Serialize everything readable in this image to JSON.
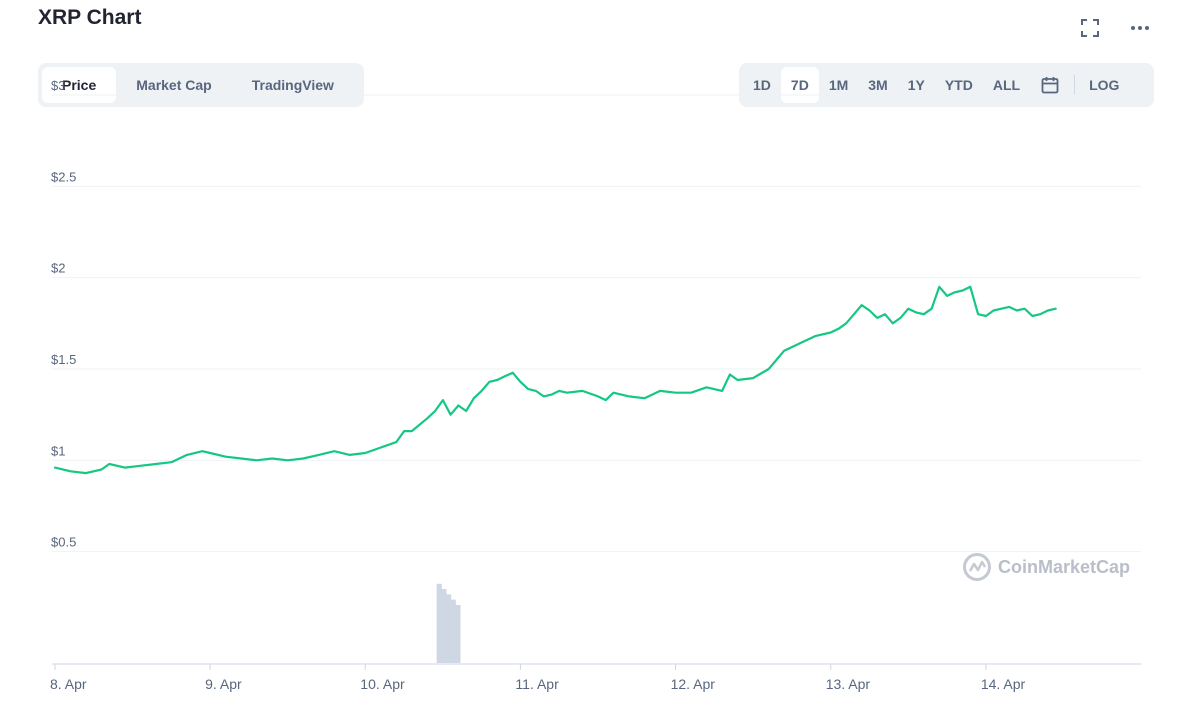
{
  "title": "XRP Chart",
  "icons": {
    "fullscreen": "fullscreen-icon",
    "more": "more-icon",
    "calendar": "calendar-icon",
    "brand": "coinmarketcap-logo-icon"
  },
  "tabs": [
    {
      "label": "Price",
      "active": true
    },
    {
      "label": "Market Cap",
      "active": false
    },
    {
      "label": "TradingView",
      "active": false
    }
  ],
  "ranges": [
    {
      "label": "1D",
      "active": false
    },
    {
      "label": "7D",
      "active": true
    },
    {
      "label": "1M",
      "active": false
    },
    {
      "label": "3M",
      "active": false
    },
    {
      "label": "1Y",
      "active": false
    },
    {
      "label": "YTD",
      "active": false
    },
    {
      "label": "ALL",
      "active": false
    }
  ],
  "log_label": "LOG",
  "watermark": "CoinMarketCap",
  "colors": {
    "line": "#16c784",
    "grid": "#eff2f5",
    "volume": "#cfd6e4",
    "axis_text": "#58667e"
  },
  "chart_data": {
    "type": "line",
    "ylim": [
      0,
      3
    ],
    "yticks": [
      0.5,
      1,
      1.5,
      2,
      2.5,
      3
    ],
    "ytick_labels": [
      "$0.5",
      "$1",
      "$1.5",
      "$2",
      "$2.5",
      "$3"
    ],
    "xlim": [
      8,
      15
    ],
    "xticks": [
      8,
      9,
      10,
      11,
      12,
      13,
      14
    ],
    "xtick_labels": [
      "8. Apr",
      "9. Apr",
      "10. Apr",
      "11. Apr",
      "12. Apr",
      "13. Apr",
      "14. Apr"
    ],
    "grid": true,
    "series": [
      {
        "values_x": [
          8.0,
          8.1,
          8.2,
          8.3,
          8.35,
          8.45,
          8.55,
          8.65,
          8.75,
          8.85,
          8.95,
          9.0,
          9.1,
          9.2,
          9.3,
          9.4,
          9.5,
          9.6,
          9.7,
          9.8,
          9.9,
          10.0,
          10.1,
          10.2,
          10.25,
          10.3,
          10.4,
          10.45,
          10.5,
          10.55,
          10.6,
          10.65,
          10.7,
          10.75,
          10.8,
          10.85,
          10.9,
          10.95,
          11.0,
          11.05,
          11.1,
          11.15,
          11.2,
          11.25,
          11.3,
          11.4,
          11.5,
          11.55,
          11.6,
          11.7,
          11.8,
          11.9,
          12.0,
          12.1,
          12.2,
          12.3,
          12.35,
          12.4,
          12.5,
          12.6,
          12.7,
          12.8,
          12.9,
          13.0,
          13.05,
          13.1,
          13.15,
          13.2,
          13.25,
          13.3,
          13.35,
          13.4,
          13.45,
          13.5,
          13.55,
          13.6,
          13.65,
          13.7,
          13.75,
          13.8,
          13.85,
          13.9,
          13.95,
          14.0,
          14.05,
          14.1,
          14.15,
          14.2,
          14.25,
          14.3,
          14.35,
          14.4,
          14.45
        ],
        "values": [
          0.96,
          0.94,
          0.93,
          0.95,
          0.98,
          0.96,
          0.97,
          0.98,
          0.99,
          1.03,
          1.05,
          1.04,
          1.02,
          1.01,
          1.0,
          1.01,
          1.0,
          1.01,
          1.03,
          1.05,
          1.03,
          1.04,
          1.07,
          1.1,
          1.16,
          1.16,
          1.23,
          1.27,
          1.33,
          1.25,
          1.3,
          1.27,
          1.34,
          1.38,
          1.43,
          1.44,
          1.46,
          1.48,
          1.43,
          1.39,
          1.38,
          1.35,
          1.36,
          1.38,
          1.37,
          1.38,
          1.35,
          1.33,
          1.37,
          1.35,
          1.34,
          1.38,
          1.37,
          1.37,
          1.4,
          1.38,
          1.47,
          1.44,
          1.45,
          1.5,
          1.6,
          1.64,
          1.68,
          1.7,
          1.72,
          1.75,
          1.8,
          1.85,
          1.82,
          1.78,
          1.8,
          1.75,
          1.78,
          1.83,
          1.81,
          1.8,
          1.83,
          1.95,
          1.9,
          1.92,
          1.93,
          1.95,
          1.8,
          1.79,
          1.82,
          1.83,
          1.84,
          1.82,
          1.83,
          1.79,
          1.8,
          1.82,
          1.83
        ]
      }
    ],
    "volume": {
      "x": [
        10.46,
        10.49,
        10.52,
        10.55,
        10.58
      ],
      "values": [
        0.9,
        0.84,
        0.78,
        0.72,
        0.66
      ]
    }
  }
}
